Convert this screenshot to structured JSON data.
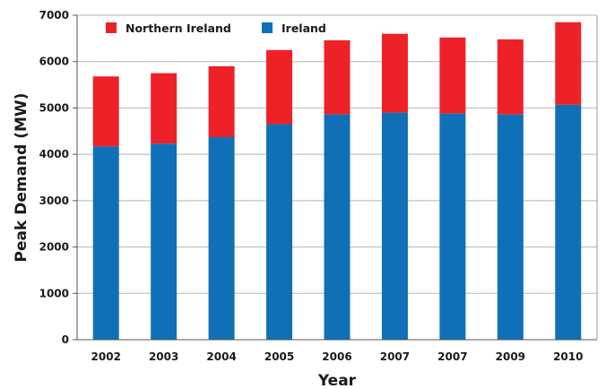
{
  "chart_data": {
    "type": "bar",
    "stacked": true,
    "title": "",
    "xlabel": "Year",
    "ylabel": "Peak Demand (MW)",
    "ylim": [
      0,
      7000
    ],
    "yticks": [
      0,
      1000,
      2000,
      3000,
      4000,
      5000,
      6000,
      7000
    ],
    "grid": true,
    "legend_position": "top-left",
    "categories": [
      "2002",
      "2003",
      "2004",
      "2005",
      "2006",
      "2007",
      "2007",
      "2009",
      "2010"
    ],
    "series": [
      {
        "name": "Ireland",
        "color": "#0f70b7",
        "values": [
          4170,
          4230,
          4370,
          4650,
          4860,
          4900,
          4880,
          4860,
          5070
        ]
      },
      {
        "name": "Northern Ireland",
        "color": "#ee2129",
        "values": [
          1510,
          1520,
          1530,
          1600,
          1600,
          1700,
          1640,
          1620,
          1780
        ]
      }
    ],
    "legend": [
      {
        "name": "Northern Ireland",
        "color": "#ee2129"
      },
      {
        "name": "Ireland",
        "color": "#0f70b7"
      }
    ]
  }
}
